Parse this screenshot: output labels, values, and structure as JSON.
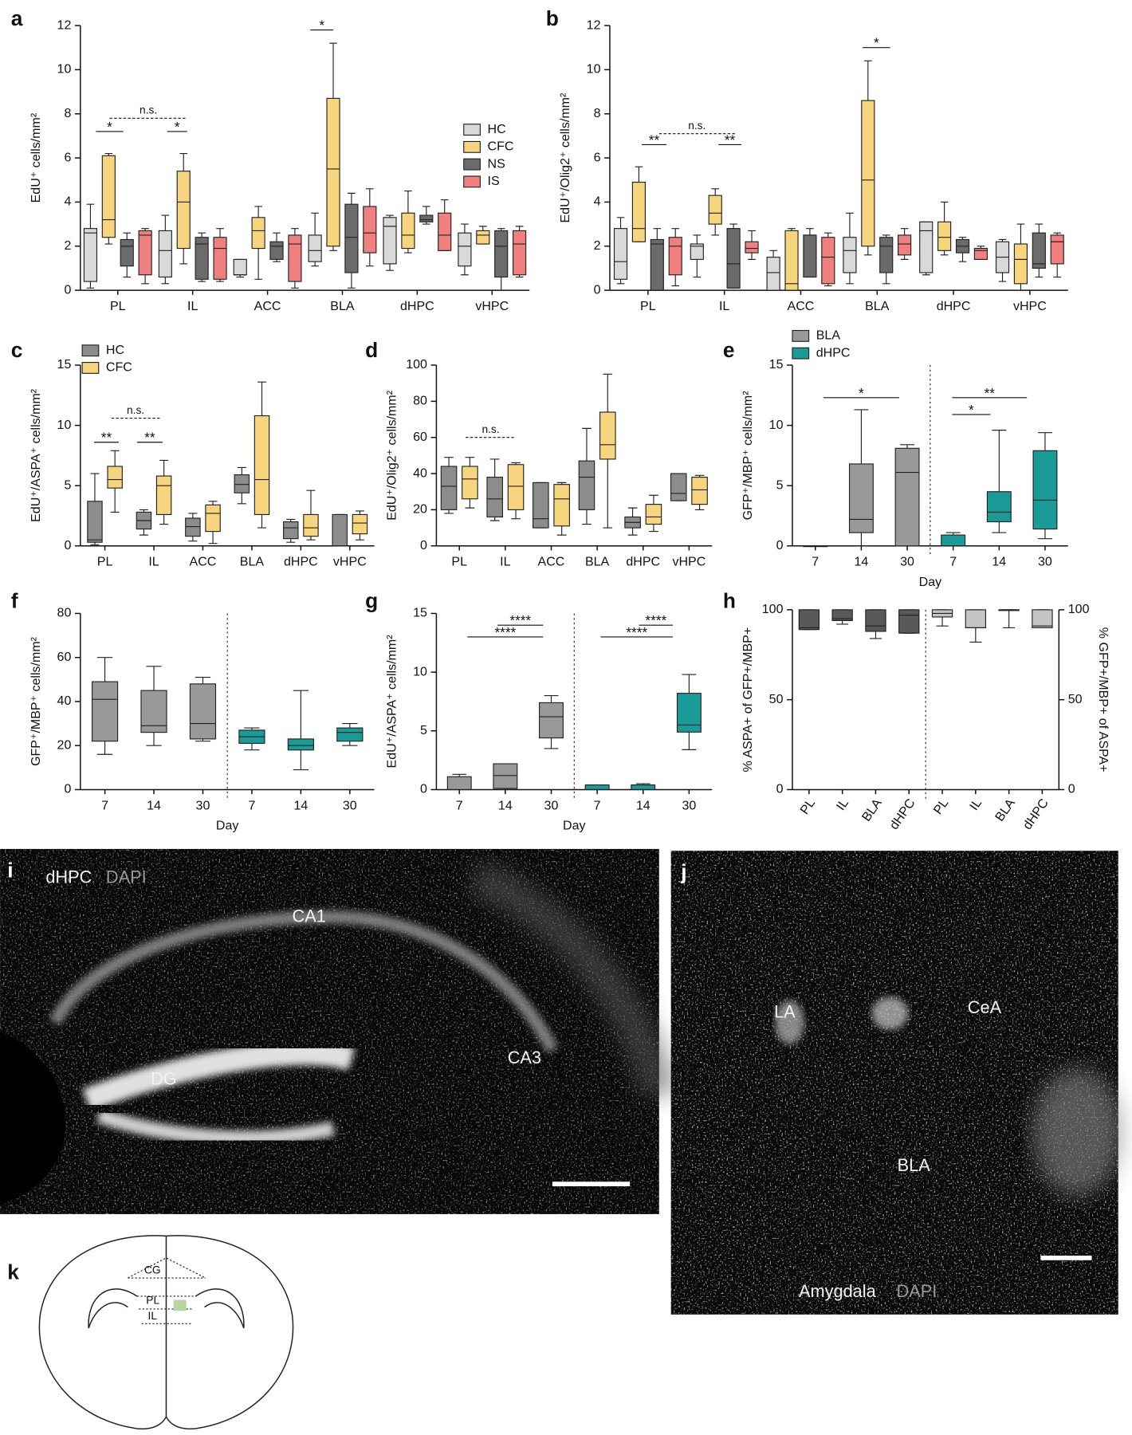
{
  "chart_data": [
    {
      "type": "box",
      "panel": "a",
      "y_label": "EdU⁺ cells/mm²",
      "ylim": [
        0,
        12
      ],
      "yticks": [
        0,
        2,
        4,
        6,
        8,
        10,
        12
      ],
      "categories": [
        "PL",
        "IL",
        "ACC",
        "BLA",
        "dHPC",
        "vHPC"
      ],
      "legend": "right",
      "series": [
        {
          "name": "HC",
          "color": "#d9d9d9",
          "values": [
            [
              0.1,
              0.4,
              2.6,
              2.8,
              3.9
            ],
            [
              0.3,
              0.6,
              1.8,
              2.7,
              3.4
            ],
            [
              0.6,
              0.7,
              0.7,
              1.4,
              1.4
            ],
            [
              1.1,
              1.3,
              1.8,
              2.5,
              3.5
            ],
            [
              0.9,
              1.2,
              2.9,
              3.3,
              3.4
            ],
            [
              0.7,
              1.1,
              2.0,
              2.6,
              3.0
            ]
          ]
        },
        {
          "name": "CFC",
          "color": "#f7d57e",
          "values": [
            [
              2.1,
              2.4,
              3.2,
              6.1,
              6.2
            ],
            [
              1.2,
              1.9,
              4.0,
              5.4,
              6.2
            ],
            [
              0.5,
              1.9,
              2.7,
              3.3,
              3.8
            ],
            [
              1.8,
              2.0,
              5.5,
              8.7,
              11.2
            ],
            [
              1.7,
              1.9,
              2.5,
              3.5,
              4.5
            ],
            [
              2.1,
              2.1,
              2.5,
              2.7,
              2.9
            ]
          ]
        },
        {
          "name": "NS",
          "color": "#6b6b6b",
          "values": [
            [
              0.6,
              1.1,
              2.0,
              2.3,
              2.6
            ],
            [
              0.4,
              0.5,
              2.1,
              2.4,
              2.6
            ],
            [
              1.3,
              1.4,
              2.0,
              2.2,
              2.6
            ],
            [
              0.1,
              0.8,
              2.4,
              3.9,
              4.4
            ],
            [
              3.0,
              3.1,
              3.2,
              3.4,
              3.8
            ],
            [
              0,
              0.6,
              2.0,
              2.7,
              2.8
            ]
          ]
        },
        {
          "name": "IS",
          "color": "#f08080",
          "values": [
            [
              0.3,
              0.7,
              2.5,
              2.7,
              2.8
            ],
            [
              0.4,
              0.5,
              1.9,
              2.4,
              2.8
            ],
            [
              0.1,
              0.4,
              2.1,
              2.5,
              2.8
            ],
            [
              1.1,
              1.7,
              2.6,
              3.8,
              4.6
            ],
            [
              1.8,
              1.8,
              2.5,
              3.5,
              4.1
            ],
            [
              0.6,
              0.7,
              2.1,
              2.7,
              2.9
            ]
          ]
        }
      ],
      "annotations": [
        "*",
        "*",
        "n.s.",
        "*"
      ]
    },
    {
      "type": "box",
      "panel": "b",
      "y_label": "EdU⁺/Olig2⁺ cells/mm²",
      "ylim": [
        0,
        12
      ],
      "yticks": [
        0,
        2,
        4,
        6,
        8,
        10,
        12
      ],
      "categories": [
        "PL",
        "IL",
        "ACC",
        "BLA",
        "dHPC",
        "vHPC"
      ],
      "series": [
        {
          "color": "#d9d9d9",
          "values": [
            [
              0.3,
              0.5,
              1.3,
              2.8,
              3.3
            ],
            [
              0.6,
              1.4,
              2.0,
              2.1,
              2.5
            ],
            [
              0,
              0,
              0.8,
              1.5,
              1.8
            ],
            [
              0.3,
              0.8,
              1.8,
              2.4,
              3.5
            ],
            [
              0.7,
              0.8,
              2.7,
              3.1,
              3.1
            ],
            [
              0.4,
              0.8,
              1.5,
              2.2,
              2.3
            ]
          ]
        },
        {
          "color": "#f7d57e",
          "values": [
            [
              2.2,
              2.2,
              2.8,
              4.9,
              5.6
            ],
            [
              2.5,
              3.0,
              3.5,
              4.3,
              4.6
            ],
            [
              0,
              0,
              0.3,
              2.7,
              2.8
            ],
            [
              1.6,
              2.0,
              5.0,
              8.6,
              10.4
            ],
            [
              1.6,
              1.8,
              2.4,
              3.1,
              4.0
            ],
            [
              0,
              0.3,
              1.4,
              2.1,
              3.0
            ]
          ]
        },
        {
          "color": "#6b6b6b",
          "values": [
            [
              0,
              0,
              2.1,
              2.3,
              2.8
            ],
            [
              0.1,
              0.1,
              1.2,
              2.8,
              3.0
            ],
            [
              0.6,
              0.6,
              2.5,
              2.5,
              2.8
            ],
            [
              0.3,
              0.8,
              2.0,
              2.4,
              2.5
            ],
            [
              1.3,
              1.7,
              2.0,
              2.3,
              2.4
            ],
            [
              0.6,
              1.0,
              1.2,
              2.6,
              3.0
            ]
          ]
        },
        {
          "color": "#f08080",
          "values": [
            [
              0.2,
              0.7,
              2.0,
              2.4,
              2.8
            ],
            [
              1.4,
              1.7,
              1.9,
              2.2,
              2.7
            ],
            [
              0.2,
              0.3,
              1.5,
              2.4,
              2.6
            ],
            [
              1.4,
              1.6,
              2.1,
              2.5,
              2.8
            ],
            [
              1.4,
              1.4,
              1.8,
              1.9,
              2.0
            ],
            [
              0.6,
              1.2,
              2.2,
              2.5,
              2.6
            ]
          ]
        }
      ],
      "annotations": [
        "**",
        "**",
        "n.s.",
        "*"
      ]
    },
    {
      "type": "box",
      "panel": "c",
      "y_label": "EdU⁺/ASPA⁺ cells/mm²",
      "ylim": [
        0,
        15
      ],
      "yticks": [
        0,
        5,
        10,
        15
      ],
      "categories": [
        "PL",
        "IL",
        "ACC",
        "BLA",
        "dHPC",
        "vHPC"
      ],
      "legend": "upper left",
      "series": [
        {
          "name": "HC",
          "color": "#8c8c8c",
          "values": [
            [
              0.1,
              0.3,
              0.5,
              3.7,
              6.0
            ],
            [
              0.9,
              1.4,
              2.1,
              2.8,
              3.0
            ],
            [
              0.4,
              0.8,
              1.6,
              2.3,
              2.7
            ],
            [
              3.5,
              4.4,
              5.1,
              5.9,
              6.5
            ],
            [
              0.3,
              0.6,
              1.5,
              2.0,
              2.2
            ],
            [
              0,
              0,
              0,
              2.6,
              2.6
            ]
          ]
        },
        {
          "name": "CFC",
          "color": "#f7d57e",
          "values": [
            [
              2.8,
              4.8,
              5.5,
              6.6,
              7.9
            ],
            [
              1.8,
              2.6,
              5.0,
              5.8,
              7.1
            ],
            [
              0.2,
              1.2,
              2.7,
              3.4,
              3.7
            ],
            [
              1.5,
              2.6,
              5.5,
              10.8,
              13.6
            ],
            [
              0.5,
              0.8,
              1.5,
              2.6,
              4.6
            ],
            [
              0.5,
              1.0,
              1.9,
              2.6,
              2.9
            ]
          ]
        }
      ],
      "annotations": [
        "**",
        "**",
        "n.s."
      ]
    },
    {
      "type": "box",
      "panel": "d",
      "y_label": "EdU⁺/Olig2⁺ cells/mm²",
      "ylim": [
        0,
        100
      ],
      "yticks": [
        0,
        20,
        40,
        60,
        80,
        100
      ],
      "categories": [
        "PL",
        "IL",
        "ACC",
        "BLA",
        "dHPC",
        "vHPC"
      ],
      "series": [
        {
          "color": "#8c8c8c",
          "values": [
            [
              18,
              20,
              33,
              44,
              49
            ],
            [
              14,
              16,
              26,
              38,
              48
            ],
            [
              10,
              10,
              15,
              35,
              35
            ],
            [
              12,
              20,
              38,
              47,
              65
            ],
            [
              6,
              10,
              13,
              16,
              21
            ],
            [
              25,
              25,
              29,
              40,
              40
            ]
          ]
        },
        {
          "color": "#f7d57e",
          "values": [
            [
              21,
              26,
              37,
              44,
              49
            ],
            [
              15,
              20,
              33,
              45,
              46
            ],
            [
              6,
              11,
              26,
              34,
              35
            ],
            [
              10,
              48,
              56,
              74,
              95
            ],
            [
              8,
              12,
              16,
              23,
              28
            ],
            [
              20,
              23,
              31,
              38,
              39
            ]
          ]
        }
      ],
      "annotations": [
        "n.s."
      ]
    },
    {
      "type": "box",
      "panel": "e",
      "y_label": "GFP⁺/MBP⁺ cells/mm²",
      "x_label": "Day",
      "ylim": [
        0,
        15
      ],
      "yticks": [
        0,
        5,
        10,
        15
      ],
      "categories": [
        "7",
        "14",
        "30",
        "7",
        "14",
        "30"
      ],
      "legend": "top",
      "series": [
        {
          "name": "BLA",
          "color": "#999999",
          "values": [
            [
              0,
              0,
              0,
              0,
              0
            ],
            [
              0,
              1.1,
              2.2,
              6.8,
              11.3
            ],
            [
              0,
              0,
              6.1,
              8.1,
              8.4
            ],
            null,
            null,
            null
          ]
        },
        {
          "name": "dHPC",
          "color": "#1a9b98",
          "values": [
            null,
            null,
            null,
            [
              0,
              0,
              0,
              0.9,
              1.1
            ],
            [
              1.1,
              2.0,
              2.8,
              4.5,
              9.6
            ],
            [
              0.6,
              1.4,
              3.8,
              7.9,
              9.4
            ]
          ]
        }
      ],
      "annotations": [
        "*",
        "**",
        "*"
      ]
    },
    {
      "type": "box",
      "panel": "f",
      "y_label": "GFP⁺/MBP⁺ cells/mm²",
      "x_label": "Day",
      "ylim": [
        0,
        80
      ],
      "yticks": [
        0,
        20,
        40,
        60,
        80
      ],
      "categories": [
        "7",
        "14",
        "30",
        "7",
        "14",
        "30"
      ],
      "series": [
        {
          "color": "#999999",
          "values": [
            [
              16,
              22,
              41,
              49,
              60
            ],
            [
              20,
              26,
              29,
              45,
              56
            ],
            [
              22,
              23,
              30,
              48,
              51
            ],
            null,
            null,
            null
          ]
        },
        {
          "color": "#1a9b98",
          "values": [
            null,
            null,
            null,
            [
              18,
              21,
              24,
              27,
              28
            ],
            [
              9,
              18,
              20,
              23,
              45
            ],
            [
              20,
              22,
              26,
              28,
              30
            ]
          ]
        }
      ],
      "annotations": []
    },
    {
      "type": "box",
      "panel": "g",
      "y_label": "EdU⁺/ASPA⁺ cells/mm²",
      "x_label": "Day",
      "ylim": [
        0,
        15
      ],
      "yticks": [
        0,
        5,
        10,
        15
      ],
      "categories": [
        "7",
        "14",
        "30",
        "7",
        "14",
        "30"
      ],
      "series": [
        {
          "color": "#999999",
          "values": [
            [
              0,
              0,
              0,
              1.1,
              1.3
            ],
            [
              0,
              0.1,
              1.2,
              2.2,
              2.2
            ],
            [
              3.5,
              4.4,
              6.2,
              7.4,
              8.0
            ],
            null,
            null,
            null
          ]
        },
        {
          "color": "#1a9b98",
          "values": [
            null,
            null,
            null,
            [
              0,
              0,
              0,
              0.4,
              0.4
            ],
            [
              0,
              0,
              0,
              0.4,
              0.5
            ],
            [
              3.4,
              4.9,
              5.5,
              8.2,
              9.8
            ]
          ]
        }
      ],
      "annotations": [
        "****",
        "****",
        "****",
        "****"
      ]
    },
    {
      "type": "box",
      "panel": "h",
      "y_label": "% ASPA+ of GFP+/MBP+",
      "y2_label": "% GFP+/MBP+ of ASPA+",
      "ylim": [
        0,
        100
      ],
      "yticks": [
        0,
        50,
        100
      ],
      "y2lim": [
        0,
        100
      ],
      "y2ticks": [
        0,
        50,
        100
      ],
      "categories": [
        "PL",
        "IL",
        "BLA",
        "dHPC",
        "PL",
        "IL",
        "BLA",
        "dHPC"
      ],
      "series": [
        {
          "color": "#595959",
          "values": [
            [
              89,
              89,
              90,
              100,
              100
            ],
            [
              92,
              94,
              95,
              100,
              100
            ],
            [
              84,
              88,
              91,
              100,
              100
            ],
            [
              87,
              87,
              97,
              100,
              100
            ],
            null,
            null,
            null,
            null
          ]
        },
        {
          "color": "#c4c4c4",
          "axis": "y2",
          "values": [
            null,
            null,
            null,
            null,
            [
              91,
              96,
              98,
              100,
              100
            ],
            [
              82,
              90,
              90,
              100,
              100
            ],
            [
              90,
              100,
              100,
              100,
              100
            ],
            [
              90,
              90,
              91,
              100,
              100
            ]
          ]
        }
      ],
      "annotations": []
    }
  ],
  "images": [
    {
      "panel": "i",
      "title": "dHPC",
      "stain": "DAPI",
      "labels": [
        "CA1",
        "DG",
        "CA3"
      ]
    },
    {
      "panel": "j",
      "title": "Amygdala",
      "stain": "DAPI",
      "labels": [
        "LA",
        "CeA",
        "BLA"
      ]
    }
  ],
  "diagram": {
    "panel": "k",
    "labels": [
      "CG",
      "PL",
      "IL"
    ]
  }
}
